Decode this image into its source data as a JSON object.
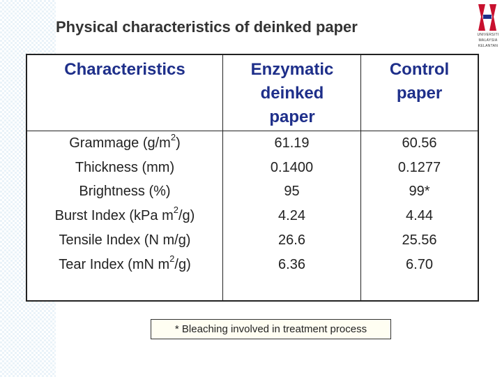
{
  "title": "Physical characteristics of deinked paper",
  "logo": {
    "lines": [
      "UNIVERSITI",
      "MALAYSIA",
      "KELANTAN"
    ]
  },
  "table": {
    "header": [
      "Characteristics",
      "Enzymatic deinked paper",
      "Control paper"
    ],
    "rows": [
      {
        "label": {
          "text": "Grammage (g/m",
          "sup": "2",
          "after": ")"
        },
        "enzymatic": "61.19",
        "control": "60.56"
      },
      {
        "label": {
          "text": "Thickness (mm)"
        },
        "enzymatic": "0.1400",
        "control": "0.1277"
      },
      {
        "label": {
          "text": "Brightness (%)"
        },
        "enzymatic": "95",
        "control": "99*"
      },
      {
        "label": {
          "text": "Burst Index (kPa m",
          "sup": "2",
          "after": "/g)"
        },
        "enzymatic": "4.24",
        "control": "4.44"
      },
      {
        "label": {
          "text": "Tensile Index (N m/g)"
        },
        "enzymatic": "26.6",
        "control": "25.56"
      },
      {
        "label": {
          "text": "Tear Index (mN m",
          "sup": "2",
          "after": "/g)"
        },
        "enzymatic": "6.36",
        "control": "6.70"
      }
    ]
  },
  "footnote": "* Bleaching involved in treatment process"
}
